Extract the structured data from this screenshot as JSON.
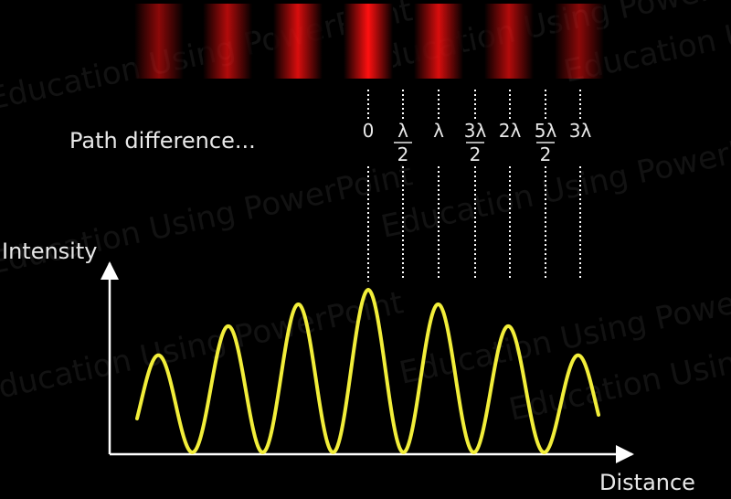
{
  "labels": {
    "path_difference": "Path difference...",
    "intensity_axis": "Intensity",
    "distance_axis": "Distance"
  },
  "watermark": "Education Using PowerPoint",
  "path_markers": [
    {
      "top": "0",
      "bottom": ""
    },
    {
      "top": "λ",
      "bottom": "2"
    },
    {
      "top": "λ",
      "bottom": ""
    },
    {
      "top": "3λ",
      "bottom": "2"
    },
    {
      "top": "2λ",
      "bottom": ""
    },
    {
      "top": "5λ",
      "bottom": "2"
    },
    {
      "top": "3λ",
      "bottom": ""
    }
  ],
  "fringes": [
    {
      "brightness": 0.55
    },
    {
      "brightness": 0.7
    },
    {
      "brightness": 0.85
    },
    {
      "brightness": 1.0
    },
    {
      "brightness": 0.85
    },
    {
      "brightness": 0.7
    },
    {
      "brightness": 0.55
    }
  ],
  "colors": {
    "fringe": "#ff1010",
    "curve": "#f2ee3a",
    "axis": "#ffffff",
    "dotted_line": "#ffffff",
    "text": "#e8e8e8"
  }
}
